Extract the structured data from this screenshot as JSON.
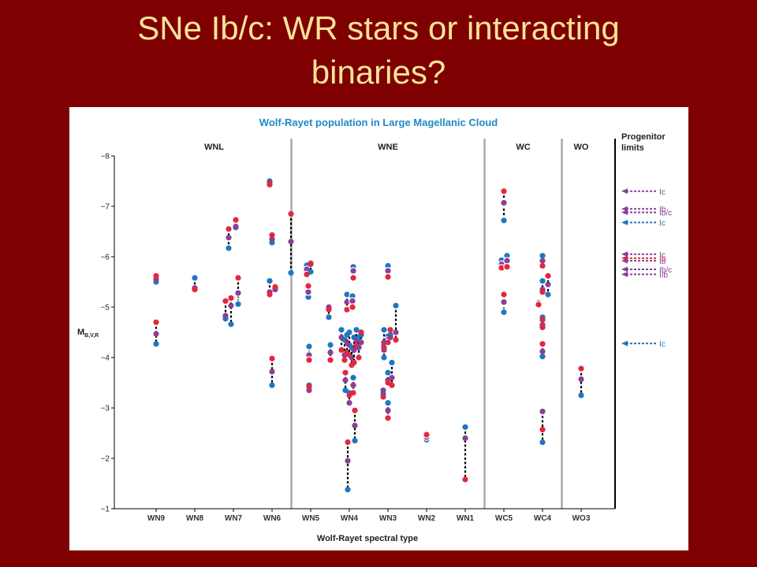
{
  "slide": {
    "title_line1": "SNe Ib/c: WR stars or interacting",
    "title_line2": "binaries?"
  },
  "colors": {
    "background": "#7e0000",
    "title": "#f7e39a",
    "B": "#1f77c2",
    "V": "#8a3f98",
    "R": "#e4273c",
    "chart_title": "#1d8bc4",
    "grid": "#aaaaaa"
  },
  "chart_data": {
    "type": "scatter",
    "title": "Wolf-Rayet population in Large Magellanic Cloud",
    "xlabel": "Wolf-Rayet spectral type",
    "ylabel": "M",
    "ylabel_subscript": "B,V,R",
    "ylim": [
      -1,
      -8
    ],
    "yticks": [
      -8,
      -7,
      -6,
      -5,
      -4,
      -3,
      -2,
      -1
    ],
    "y_inverted": true,
    "categories": [
      "WN9",
      "WN8",
      "WN7",
      "WN6",
      "WN5",
      "WN4",
      "WN3",
      "WN2",
      "WN1",
      "WC5",
      "WC4",
      "WO3"
    ],
    "groups": [
      {
        "label": "WNL",
        "from": 0,
        "to": 3
      },
      {
        "label": "WNE",
        "from": 4,
        "to": 8
      },
      {
        "label": "WC",
        "from": 9,
        "to": 10
      },
      {
        "label": "WO",
        "from": 11,
        "to": 11
      }
    ],
    "group_dividers_after": [
      3,
      8,
      10
    ],
    "series_names": [
      "B",
      "V",
      "R"
    ],
    "stars": [
      {
        "x": "WN9",
        "dx": 0,
        "B": -5.5,
        "V": -5.55,
        "R": -5.62
      },
      {
        "x": "WN9",
        "dx": 0,
        "B": -4.27,
        "V": -4.47,
        "R": -4.7
      },
      {
        "x": "WN8",
        "dx": 0,
        "B": -5.58,
        "V": -5.38,
        "R": -5.35
      },
      {
        "x": "WN7",
        "dx": -10,
        "B": -4.77,
        "V": -4.83,
        "R": -5.12
      },
      {
        "x": "WN7",
        "dx": -3,
        "B": -4.66,
        "V": -5.03,
        "R": -5.18
      },
      {
        "x": "WN7",
        "dx": 6,
        "B": -5.06,
        "V": -5.28,
        "R": -5.58,
        "ring": true
      },
      {
        "x": "WN7",
        "dx": -6,
        "B": -6.17,
        "V": -6.38,
        "R": -6.55
      },
      {
        "x": "WN7",
        "dx": 3,
        "B": -6.58,
        "V": -6.6,
        "R": -6.73
      },
      {
        "x": "WN6",
        "dx": -3,
        "B": -7.5,
        "V": -7.47,
        "R": -7.43
      },
      {
        "x": "WN6",
        "dx": 0,
        "B": -6.28,
        "V": -6.35,
        "R": -6.43
      },
      {
        "x": "WN6",
        "dx": -3,
        "B": -5.52,
        "V": -5.3,
        "R": -5.25
      },
      {
        "x": "WN6",
        "dx": 4,
        "B": -5.38,
        "V": -5.35,
        "R": -5.4
      },
      {
        "x": "WN6",
        "dx": 0,
        "B": -3.45,
        "V": -3.72,
        "R": -3.98
      },
      {
        "x": "WN6",
        "dx": 24,
        "B": -5.68,
        "V": -6.3,
        "R": -6.85
      },
      {
        "x": "WN5",
        "dx": -5,
        "B": -5.83,
        "V": -5.75,
        "R": -5.65,
        "ring": true
      },
      {
        "x": "WN5",
        "dx": 0,
        "B": -5.7,
        "V": -5.85,
        "R": -5.87
      },
      {
        "x": "WN5",
        "dx": -3,
        "B": -5.2,
        "V": -5.3,
        "R": -5.42,
        "ring": true
      },
      {
        "x": "WN5",
        "dx": -2,
        "B": -4.22,
        "V": -4.05,
        "R": -3.95,
        "ring": true
      },
      {
        "x": "WN5",
        "dx": -2,
        "B": -3.45,
        "V": -3.35,
        "R": -3.42
      },
      {
        "x": "WN4",
        "dx": -26,
        "B": -4.8,
        "V": -5.0,
        "R": -4.95
      },
      {
        "x": "WN4",
        "dx": -24,
        "B": -4.25,
        "V": -4.1,
        "R": -3.95
      },
      {
        "x": "WN4",
        "dx": -10,
        "B": -4.55,
        "V": -4.4,
        "R": -4.15
      },
      {
        "x": "WN4",
        "dx": -6,
        "B": -4.35,
        "V": -4.05,
        "R": -3.95
      },
      {
        "x": "WN4",
        "dx": -3,
        "B": -4.45,
        "V": -4.3,
        "R": -4.1
      },
      {
        "x": "WN4",
        "dx": 0,
        "B": -4.5,
        "V": -4.25,
        "R": -4.05
      },
      {
        "x": "WN4",
        "dx": 3,
        "B": -4.2,
        "V": -4.0,
        "R": -3.85
      },
      {
        "x": "WN4",
        "dx": 6,
        "B": -4.4,
        "V": -4.15,
        "R": -3.9
      },
      {
        "x": "WN4",
        "dx": 9,
        "B": -4.55,
        "V": -4.35,
        "R": -4.25
      },
      {
        "x": "WN4",
        "dx": 12,
        "B": -4.4,
        "V": -4.2,
        "R": -4.0
      },
      {
        "x": "WN4",
        "dx": 15,
        "B": -4.45,
        "V": -4.3,
        "R": -4.5
      },
      {
        "x": "WN4",
        "dx": -3,
        "B": -5.25,
        "V": -5.1,
        "R": -4.95
      },
      {
        "x": "WN4",
        "dx": 4,
        "B": -5.22,
        "V": -5.12,
        "R": -5.0,
        "ring": true
      },
      {
        "x": "WN4",
        "dx": 5,
        "B": -5.8,
        "V": -5.72,
        "R": -5.58,
        "ring": true
      },
      {
        "x": "WN4",
        "dx": -5,
        "B": -3.35,
        "V": -3.55,
        "R": -3.7
      },
      {
        "x": "WN4",
        "dx": 0,
        "B": -3.3,
        "V": -3.1,
        "R": -3.25
      },
      {
        "x": "WN4",
        "dx": 5,
        "B": -3.6,
        "V": -3.45,
        "R": -3.3
      },
      {
        "x": "WN4",
        "dx": 7,
        "B": -2.35,
        "V": -2.65,
        "R": -2.95
      },
      {
        "x": "WN4",
        "dx": -2,
        "B": -1.38,
        "V": -1.95,
        "R": -2.32
      },
      {
        "x": "WN3",
        "dx": -5,
        "B": -4.0,
        "V": -4.15,
        "R": -4.25
      },
      {
        "x": "WN3",
        "dx": 0,
        "B": -4.42,
        "V": -4.35,
        "R": -4.3,
        "ring": true
      },
      {
        "x": "WN3",
        "dx": -5,
        "B": -4.55,
        "V": -4.3,
        "R": -4.2
      },
      {
        "x": "WN3",
        "dx": 3,
        "B": -4.45,
        "V": -4.4,
        "R": -4.55
      },
      {
        "x": "WN3",
        "dx": 10,
        "B": -5.03,
        "V": -4.5,
        "R": -4.35
      },
      {
        "x": "WN3",
        "dx": 0,
        "B": -5.82,
        "V": -5.72,
        "R": -5.6,
        "ring": true
      },
      {
        "x": "WN3",
        "dx": -6,
        "B": -3.28,
        "V": -3.35,
        "R": -3.22
      },
      {
        "x": "WN3",
        "dx": 0,
        "B": -3.1,
        "V": -2.95,
        "R": -2.8
      },
      {
        "x": "WN3",
        "dx": 5,
        "B": -3.9,
        "V": -3.6,
        "R": -3.45
      },
      {
        "x": "WN3",
        "dx": 0,
        "B": -3.7,
        "V": -3.55,
        "R": -3.5
      },
      {
        "x": "WN2",
        "dx": 0,
        "B": -2.37,
        "V": -2.42,
        "R": -2.47,
        "ring": true
      },
      {
        "x": "WN1",
        "dx": 0,
        "B": -2.62,
        "V": -2.4,
        "R": -1.58
      },
      {
        "x": "WC5",
        "dx": 0,
        "B": -6.72,
        "V": -7.07,
        "R": -7.3,
        "ring": true
      },
      {
        "x": "WC5",
        "dx": -3,
        "B": -5.93,
        "V": -5.85,
        "R": -5.78,
        "ring": true
      },
      {
        "x": "WC5",
        "dx": 4,
        "B": -6.02,
        "V": -5.92,
        "R": -5.8,
        "ring": true
      },
      {
        "x": "WC5",
        "dx": 0,
        "B": -4.9,
        "V": -5.1,
        "R": -5.25,
        "ring": true
      },
      {
        "x": "WC4",
        "dx": 0,
        "B": -6.02,
        "V": -5.92,
        "R": -5.82
      },
      {
        "x": "WC4",
        "dx": 0,
        "B": -5.52,
        "V": -5.35,
        "R": -5.3
      },
      {
        "x": "WC4",
        "dx": 7,
        "B": -5.25,
        "V": -5.45,
        "R": -5.62
      },
      {
        "x": "WC4",
        "dx": -5,
        "B": -5.1,
        "V": -5.08,
        "R": -5.05,
        "ring": true
      },
      {
        "x": "WC4",
        "dx": 0,
        "B": -4.8,
        "V": -4.75,
        "R": -4.75
      },
      {
        "x": "WC4",
        "dx": 0,
        "B": -4.6,
        "V": -4.65,
        "R": -4.6
      },
      {
        "x": "WC4",
        "dx": 0,
        "B": -4.02,
        "V": -4.12,
        "R": -4.27
      },
      {
        "x": "WC4",
        "dx": 0,
        "B": -2.32,
        "V": -2.93,
        "R": -2.57
      },
      {
        "x": "WO3",
        "dx": 0,
        "B": -3.25,
        "V": -3.57,
        "R": -3.78
      }
    ],
    "progenitor_limits": {
      "title_line1": "Progenitor",
      "title_line2": "limits",
      "arrows": [
        {
          "label": "Ic",
          "y": -7.3,
          "color": "#8a3f98"
        },
        {
          "label": "Ib",
          "y": -6.95,
          "color": "#8a3f98"
        },
        {
          "label": "Ib/c",
          "y": -6.88,
          "color": "#8a3f98"
        },
        {
          "label": "Ic",
          "y": -6.68,
          "color": "#1f77c2"
        },
        {
          "label": "Ic",
          "y": -6.05,
          "color": "#8a3f98"
        },
        {
          "label": "Ib",
          "y": -5.97,
          "color": "#e4273c"
        },
        {
          "label": "Ib",
          "y": -5.92,
          "color": "#8a3f98"
        },
        {
          "label": "Ib/c",
          "y": -5.75,
          "color": "#8a3f98"
        },
        {
          "label": "IIb",
          "y": -5.65,
          "color": "#8a3f98"
        },
        {
          "label": "Ic",
          "y": -4.28,
          "color": "#1f77c2"
        }
      ]
    }
  }
}
